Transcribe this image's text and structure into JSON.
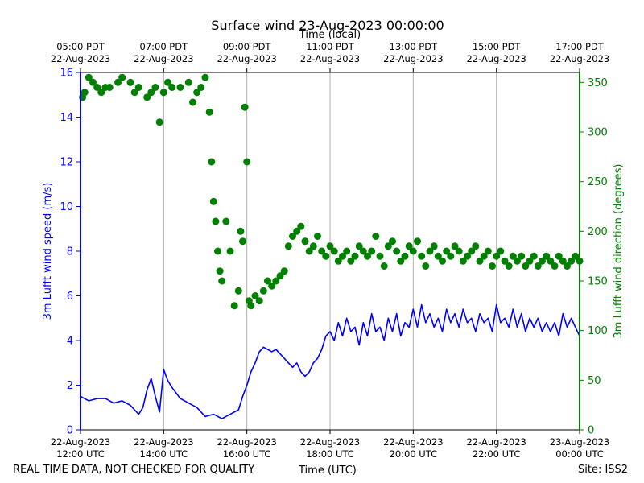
{
  "chart_data": {
    "type": "line+scatter",
    "title": "Surface wind 23-Aug-2023 00:00:00",
    "top_axis": {
      "label": "Time (local)",
      "ticks": [
        {
          "line1": "05:00 PDT",
          "line2": "22-Aug-2023"
        },
        {
          "line1": "07:00 PDT",
          "line2": "22-Aug-2023"
        },
        {
          "line1": "09:00 PDT",
          "line2": "22-Aug-2023"
        },
        {
          "line1": "11:00 PDT",
          "line2": "22-Aug-2023"
        },
        {
          "line1": "13:00 PDT",
          "line2": "22-Aug-2023"
        },
        {
          "line1": "15:00 PDT",
          "line2": "22-Aug-2023"
        },
        {
          "line1": "17:00 PDT",
          "line2": "22-Aug-2023"
        }
      ]
    },
    "x_axis": {
      "label": "Time (UTC)",
      "range_hours_utc": [
        12,
        24
      ],
      "ticks": [
        {
          "hour": 12,
          "line1": "22-Aug-2023",
          "line2": "12:00 UTC"
        },
        {
          "hour": 14,
          "line1": "22-Aug-2023",
          "line2": "14:00 UTC"
        },
        {
          "hour": 16,
          "line1": "22-Aug-2023",
          "line2": "16:00 UTC"
        },
        {
          "hour": 18,
          "line1": "22-Aug-2023",
          "line2": "18:00 UTC"
        },
        {
          "hour": 20,
          "line1": "22-Aug-2023",
          "line2": "20:00 UTC"
        },
        {
          "hour": 22,
          "line1": "22-Aug-2023",
          "line2": "22:00 UTC"
        },
        {
          "hour": 24,
          "line1": "23-Aug-2023",
          "line2": "00:00 UTC"
        }
      ]
    },
    "y_left": {
      "label": "3m Lufft wind speed (m/s)",
      "ylim": [
        0,
        16
      ],
      "ticks": [
        "0",
        "2",
        "4",
        "6",
        "8",
        "10",
        "12",
        "14",
        "16"
      ],
      "color": "#0000ff"
    },
    "y_right": {
      "label": "3m Lufft wind direction (degrees)",
      "ylim": [
        0,
        360
      ],
      "ticks": [
        "0",
        "50",
        "100",
        "150",
        "200",
        "250",
        "300",
        "350"
      ],
      "color": "#008000"
    },
    "series": [
      {
        "name": "3m Lufft wind speed",
        "style": "line",
        "color": "#0000ff",
        "points": [
          [
            12.0,
            1.5
          ],
          [
            12.2,
            1.3
          ],
          [
            12.4,
            1.4
          ],
          [
            12.6,
            1.4
          ],
          [
            12.8,
            1.2
          ],
          [
            13.0,
            1.3
          ],
          [
            13.2,
            1.1
          ],
          [
            13.4,
            0.7
          ],
          [
            13.5,
            1.0
          ],
          [
            13.6,
            1.8
          ],
          [
            13.7,
            2.3
          ],
          [
            13.8,
            1.5
          ],
          [
            13.9,
            0.8
          ],
          [
            14.0,
            2.7
          ],
          [
            14.1,
            2.2
          ],
          [
            14.2,
            1.9
          ],
          [
            14.4,
            1.4
          ],
          [
            14.6,
            1.2
          ],
          [
            14.8,
            1.0
          ],
          [
            15.0,
            0.6
          ],
          [
            15.2,
            0.7
          ],
          [
            15.4,
            0.5
          ],
          [
            15.6,
            0.7
          ],
          [
            15.8,
            0.9
          ],
          [
            15.9,
            1.5
          ],
          [
            16.0,
            2.0
          ],
          [
            16.1,
            2.6
          ],
          [
            16.2,
            3.0
          ],
          [
            16.3,
            3.5
          ],
          [
            16.4,
            3.7
          ],
          [
            16.5,
            3.6
          ],
          [
            16.6,
            3.5
          ],
          [
            16.7,
            3.6
          ],
          [
            16.8,
            3.4
          ],
          [
            16.9,
            3.2
          ],
          [
            17.0,
            3.0
          ],
          [
            17.1,
            2.8
          ],
          [
            17.2,
            3.0
          ],
          [
            17.3,
            2.6
          ],
          [
            17.4,
            2.4
          ],
          [
            17.5,
            2.6
          ],
          [
            17.6,
            3.0
          ],
          [
            17.7,
            3.2
          ],
          [
            17.8,
            3.6
          ],
          [
            17.9,
            4.2
          ],
          [
            18.0,
            4.4
          ],
          [
            18.1,
            4.0
          ],
          [
            18.2,
            4.8
          ],
          [
            18.3,
            4.2
          ],
          [
            18.4,
            5.0
          ],
          [
            18.5,
            4.4
          ],
          [
            18.6,
            4.6
          ],
          [
            18.7,
            3.8
          ],
          [
            18.8,
            4.8
          ],
          [
            18.9,
            4.2
          ],
          [
            19.0,
            5.2
          ],
          [
            19.1,
            4.4
          ],
          [
            19.2,
            4.6
          ],
          [
            19.3,
            4.0
          ],
          [
            19.4,
            5.0
          ],
          [
            19.5,
            4.4
          ],
          [
            19.6,
            5.2
          ],
          [
            19.7,
            4.2
          ],
          [
            19.8,
            4.8
          ],
          [
            19.9,
            4.6
          ],
          [
            20.0,
            5.4
          ],
          [
            20.1,
            4.6
          ],
          [
            20.2,
            5.6
          ],
          [
            20.3,
            4.8
          ],
          [
            20.4,
            5.2
          ],
          [
            20.5,
            4.6
          ],
          [
            20.6,
            5.0
          ],
          [
            20.7,
            4.4
          ],
          [
            20.8,
            5.4
          ],
          [
            20.9,
            4.8
          ],
          [
            21.0,
            5.2
          ],
          [
            21.1,
            4.6
          ],
          [
            21.2,
            5.4
          ],
          [
            21.3,
            4.8
          ],
          [
            21.4,
            5.0
          ],
          [
            21.5,
            4.4
          ],
          [
            21.6,
            5.2
          ],
          [
            21.7,
            4.8
          ],
          [
            21.8,
            5.0
          ],
          [
            21.9,
            4.4
          ],
          [
            22.0,
            5.6
          ],
          [
            22.1,
            4.8
          ],
          [
            22.2,
            5.0
          ],
          [
            22.3,
            4.6
          ],
          [
            22.4,
            5.4
          ],
          [
            22.5,
            4.6
          ],
          [
            22.6,
            5.2
          ],
          [
            22.7,
            4.4
          ],
          [
            22.8,
            5.0
          ],
          [
            22.9,
            4.6
          ],
          [
            23.0,
            5.0
          ],
          [
            23.1,
            4.4
          ],
          [
            23.2,
            4.8
          ],
          [
            23.3,
            4.4
          ],
          [
            23.4,
            4.8
          ],
          [
            23.5,
            4.2
          ],
          [
            23.6,
            5.2
          ],
          [
            23.7,
            4.6
          ],
          [
            23.8,
            5.0
          ],
          [
            23.9,
            4.6
          ],
          [
            24.0,
            4.2
          ]
        ]
      },
      {
        "name": "3m Lufft wind direction",
        "style": "scatter",
        "color": "#008000",
        "points": [
          [
            12.05,
            335
          ],
          [
            12.1,
            340
          ],
          [
            12.2,
            355
          ],
          [
            12.3,
            350
          ],
          [
            12.4,
            345
          ],
          [
            12.5,
            340
          ],
          [
            12.6,
            345
          ],
          [
            12.7,
            345
          ],
          [
            12.9,
            350
          ],
          [
            13.0,
            355
          ],
          [
            13.2,
            350
          ],
          [
            13.3,
            340
          ],
          [
            13.4,
            345
          ],
          [
            13.6,
            335
          ],
          [
            13.7,
            340
          ],
          [
            13.8,
            345
          ],
          [
            13.9,
            310
          ],
          [
            14.0,
            340
          ],
          [
            14.1,
            350
          ],
          [
            14.2,
            345
          ],
          [
            14.4,
            345
          ],
          [
            14.6,
            350
          ],
          [
            14.7,
            330
          ],
          [
            14.8,
            340
          ],
          [
            14.9,
            345
          ],
          [
            15.0,
            355
          ],
          [
            15.1,
            320
          ],
          [
            15.15,
            270
          ],
          [
            15.2,
            230
          ],
          [
            15.25,
            210
          ],
          [
            15.3,
            180
          ],
          [
            15.35,
            160
          ],
          [
            15.4,
            150
          ],
          [
            15.5,
            210
          ],
          [
            15.6,
            180
          ],
          [
            15.7,
            125
          ],
          [
            15.8,
            140
          ],
          [
            15.85,
            200
          ],
          [
            15.9,
            190
          ],
          [
            15.95,
            325
          ],
          [
            16.0,
            270
          ],
          [
            16.05,
            130
          ],
          [
            16.1,
            125
          ],
          [
            16.2,
            135
          ],
          [
            16.3,
            130
          ],
          [
            16.4,
            140
          ],
          [
            16.5,
            150
          ],
          [
            16.6,
            145
          ],
          [
            16.7,
            150
          ],
          [
            16.8,
            155
          ],
          [
            16.9,
            160
          ],
          [
            17.0,
            185
          ],
          [
            17.1,
            195
          ],
          [
            17.2,
            200
          ],
          [
            17.3,
            205
          ],
          [
            17.4,
            190
          ],
          [
            17.5,
            180
          ],
          [
            17.6,
            185
          ],
          [
            17.7,
            195
          ],
          [
            17.8,
            180
          ],
          [
            17.9,
            175
          ],
          [
            18.0,
            185
          ],
          [
            18.1,
            180
          ],
          [
            18.2,
            170
          ],
          [
            18.3,
            175
          ],
          [
            18.4,
            180
          ],
          [
            18.5,
            170
          ],
          [
            18.6,
            175
          ],
          [
            18.7,
            185
          ],
          [
            18.8,
            180
          ],
          [
            18.9,
            175
          ],
          [
            19.0,
            180
          ],
          [
            19.1,
            195
          ],
          [
            19.2,
            175
          ],
          [
            19.3,
            165
          ],
          [
            19.4,
            185
          ],
          [
            19.5,
            190
          ],
          [
            19.6,
            180
          ],
          [
            19.7,
            170
          ],
          [
            19.8,
            175
          ],
          [
            19.9,
            185
          ],
          [
            20.0,
            180
          ],
          [
            20.1,
            190
          ],
          [
            20.2,
            175
          ],
          [
            20.3,
            165
          ],
          [
            20.4,
            180
          ],
          [
            20.5,
            185
          ],
          [
            20.6,
            175
          ],
          [
            20.7,
            170
          ],
          [
            20.8,
            180
          ],
          [
            20.9,
            175
          ],
          [
            21.0,
            185
          ],
          [
            21.1,
            180
          ],
          [
            21.2,
            170
          ],
          [
            21.3,
            175
          ],
          [
            21.4,
            180
          ],
          [
            21.5,
            185
          ],
          [
            21.6,
            170
          ],
          [
            21.7,
            175
          ],
          [
            21.8,
            180
          ],
          [
            21.9,
            165
          ],
          [
            22.0,
            175
          ],
          [
            22.1,
            180
          ],
          [
            22.2,
            170
          ],
          [
            22.3,
            165
          ],
          [
            22.4,
            175
          ],
          [
            22.5,
            170
          ],
          [
            22.6,
            175
          ],
          [
            22.7,
            165
          ],
          [
            22.8,
            170
          ],
          [
            22.9,
            175
          ],
          [
            23.0,
            165
          ],
          [
            23.1,
            170
          ],
          [
            23.2,
            175
          ],
          [
            23.3,
            170
          ],
          [
            23.4,
            165
          ],
          [
            23.5,
            175
          ],
          [
            23.6,
            170
          ],
          [
            23.7,
            165
          ],
          [
            23.8,
            170
          ],
          [
            23.9,
            175
          ],
          [
            24.0,
            170
          ]
        ]
      }
    ],
    "grid": "vertical",
    "legend": "none"
  },
  "footer": {
    "disclaimer": "REAL TIME DATA, NOT CHECKED FOR QUALITY",
    "xlabel": "Time (UTC)",
    "site": "Site: ISS2"
  }
}
